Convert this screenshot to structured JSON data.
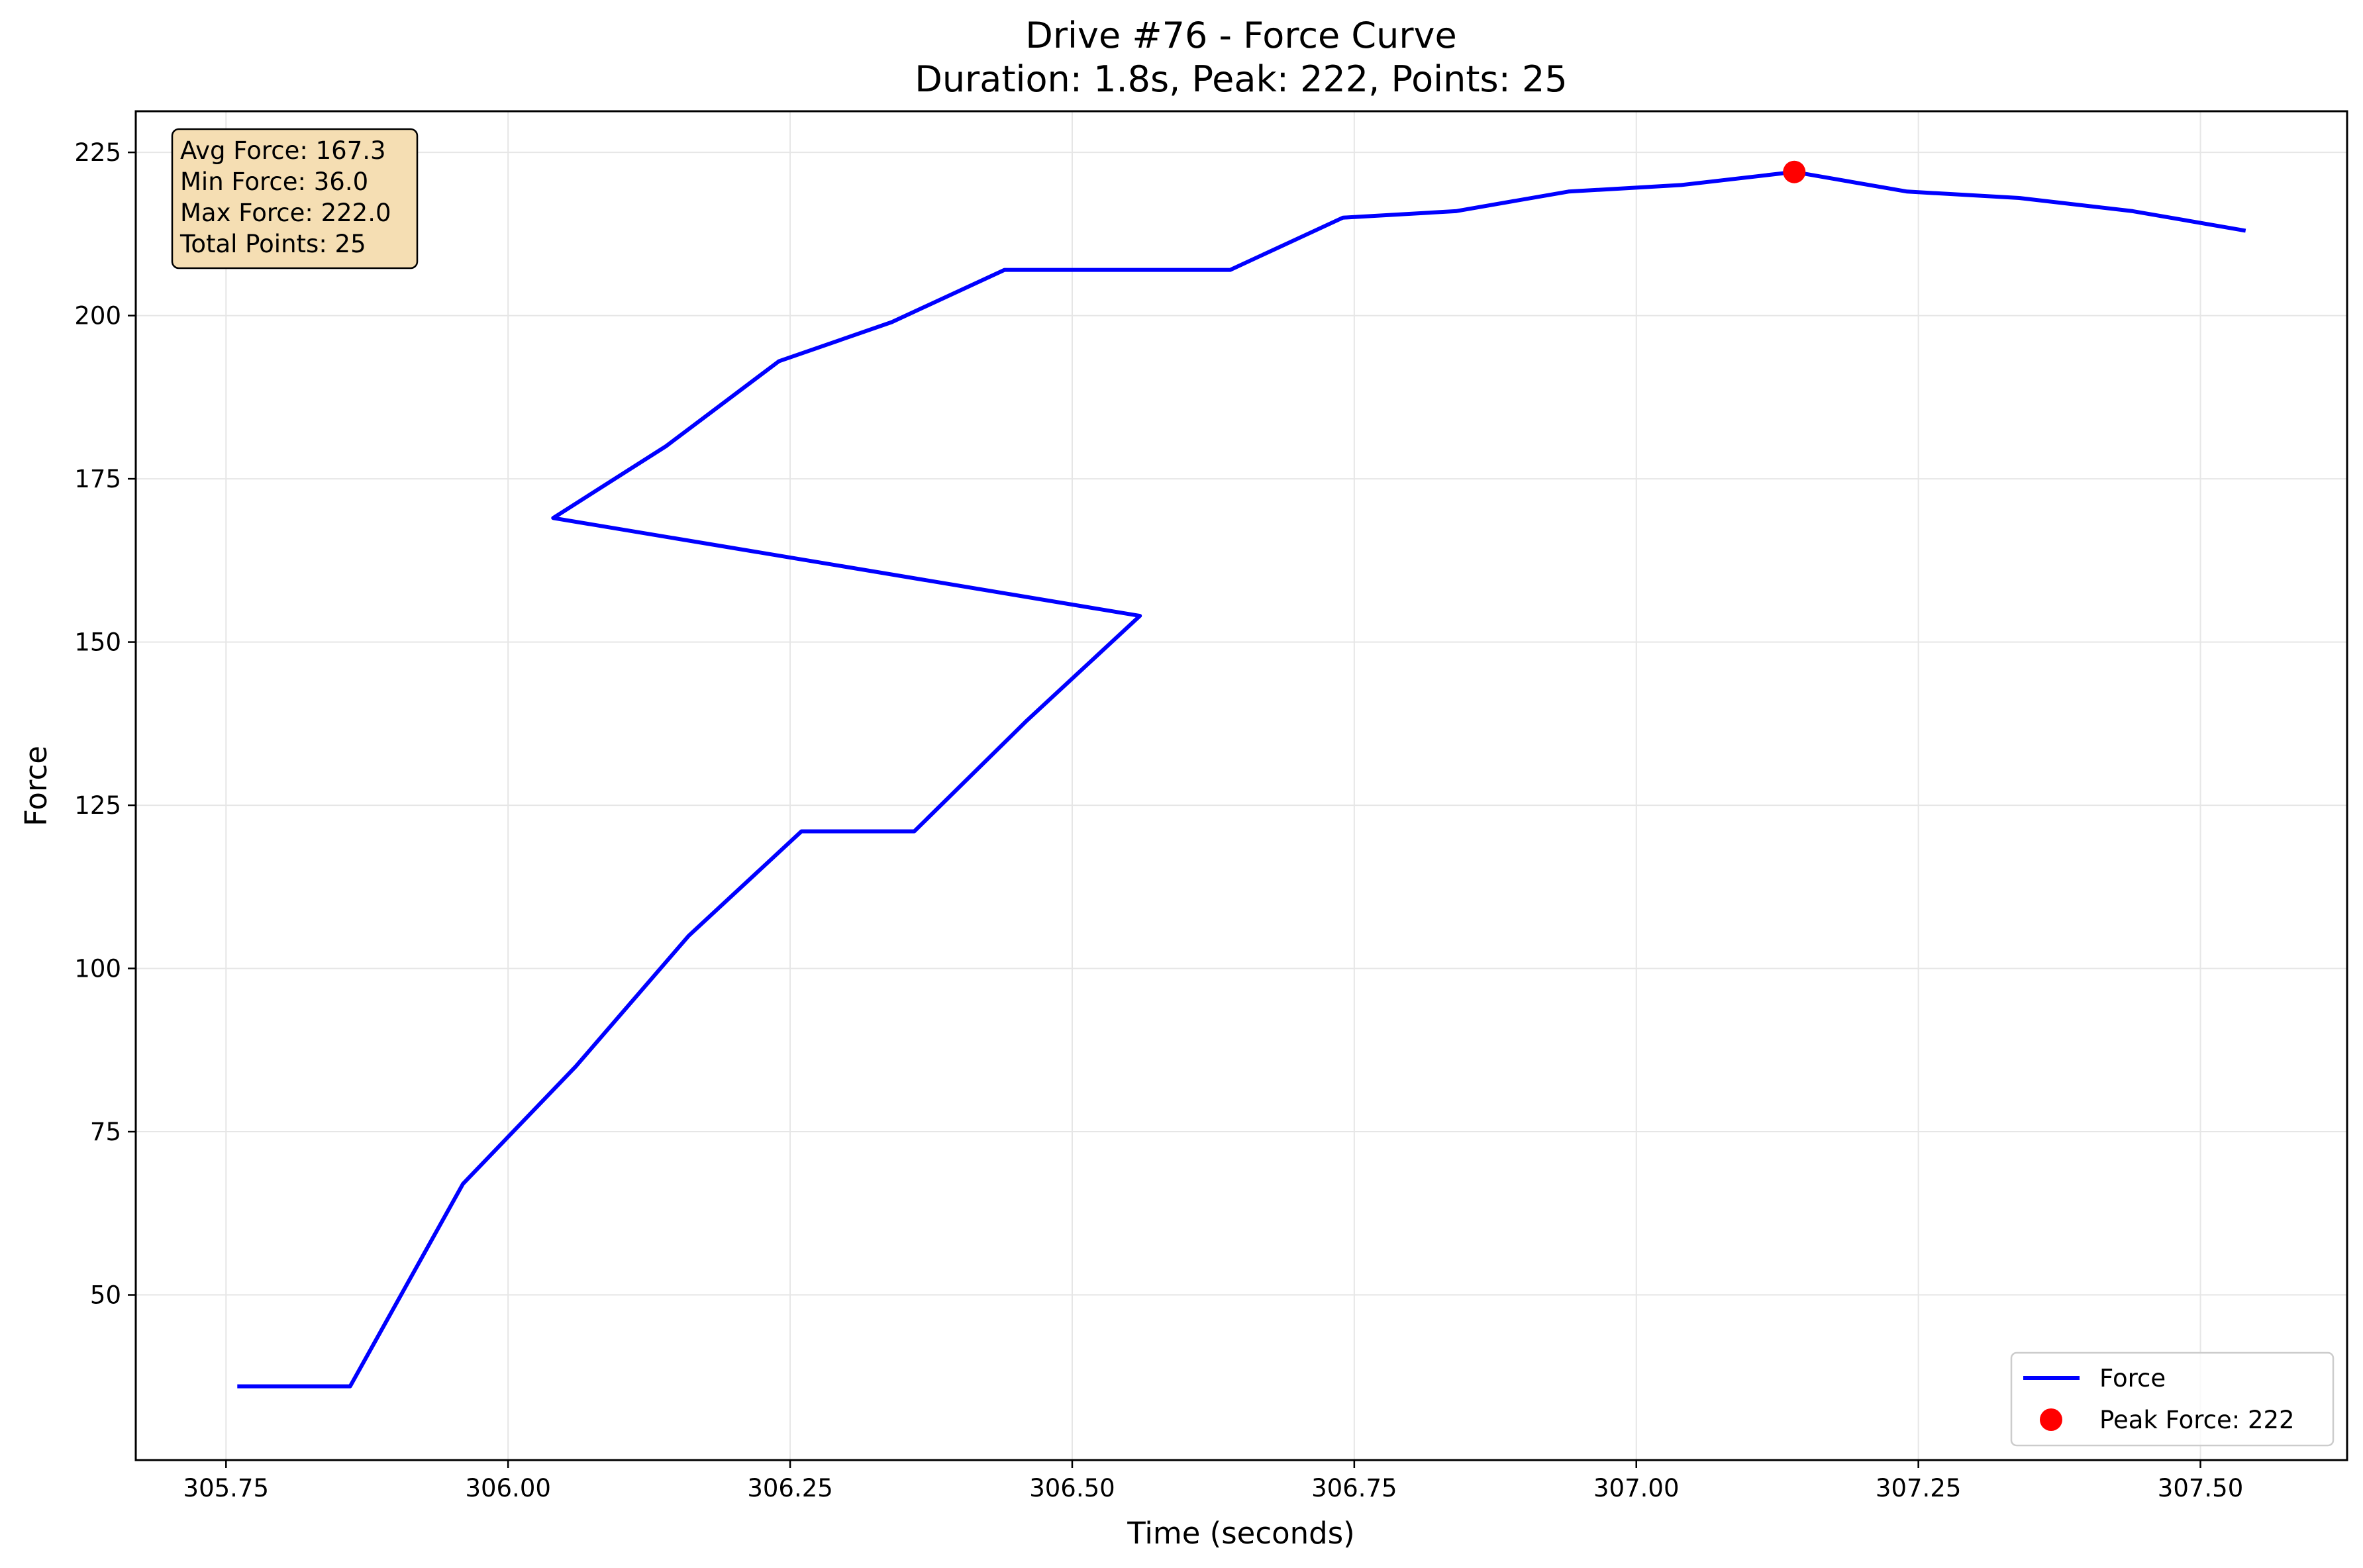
{
  "chart_data": {
    "type": "line",
    "title": "Drive #76 - Force Curve",
    "subtitle": "Duration: 1.8s, Peak: 222, Points: 25",
    "xlabel": "Time (seconds)",
    "ylabel": "Force",
    "xlim": [
      305.67,
      307.63
    ],
    "ylim": [
      24.7,
      231.3
    ],
    "x_ticks": [
      305.75,
      306.0,
      306.25,
      306.5,
      306.75,
      307.0,
      307.25,
      307.5
    ],
    "x_tick_labels": [
      "305.75",
      "306.00",
      "306.25",
      "306.50",
      "306.75",
      "307.00",
      "307.25",
      "307.50"
    ],
    "y_ticks": [
      50,
      75,
      100,
      125,
      150,
      175,
      200,
      225
    ],
    "y_tick_labels": [
      "50",
      "75",
      "100",
      "125",
      "150",
      "175",
      "200",
      "225"
    ],
    "grid": true,
    "legend_position": "lower-right",
    "series": [
      {
        "name": "Force",
        "color": "#0000ff",
        "x": [
          305.76,
          305.86,
          305.96,
          306.06,
          306.16,
          306.26,
          306.36,
          306.46,
          306.56,
          306.04,
          306.14,
          306.24,
          306.34,
          306.44,
          306.54,
          306.64,
          306.74,
          306.84,
          306.94,
          307.04,
          307.14,
          307.24,
          307.34,
          307.44,
          307.54
        ],
        "y": [
          36,
          36,
          67,
          85,
          105,
          121,
          121,
          138,
          154,
          169,
          180,
          193,
          199,
          207,
          207,
          207,
          215,
          216,
          219,
          220,
          222,
          219,
          218,
          216,
          213
        ]
      },
      {
        "name": "Peak Force: 222",
        "color": "#ff0000",
        "type": "point",
        "x": [
          307.14
        ],
        "y": [
          222
        ]
      }
    ],
    "stats": [
      "Avg Force: 167.3",
      "Min Force: 36.0",
      "Max Force: 222.0",
      "Total Points: 25"
    ],
    "stats_box_color": "#f5deb3"
  }
}
